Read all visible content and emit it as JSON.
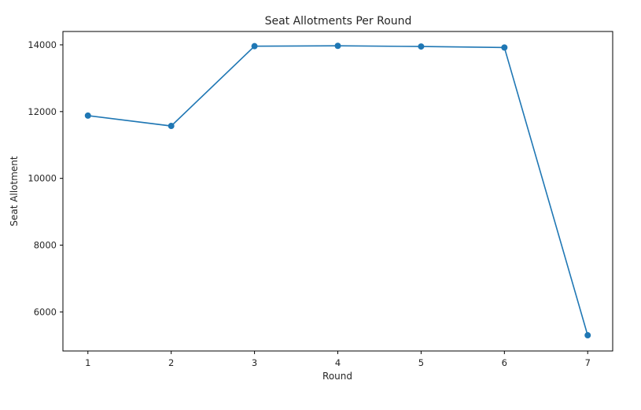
{
  "chart_data": {
    "type": "line",
    "title": "Seat Allotments Per Round",
    "xlabel": "Round",
    "ylabel": "Seat Allotment",
    "xlim": [
      0.7,
      7.3
    ],
    "ylim": [
      4830,
      14400
    ],
    "x_ticks": [
      1,
      2,
      3,
      4,
      5,
      6,
      7
    ],
    "y_ticks": [
      6000,
      8000,
      10000,
      12000,
      14000
    ],
    "grid": false,
    "series": [
      {
        "x": [
          1,
          2,
          3,
          4,
          5,
          6,
          7
        ],
        "values": [
          11880,
          11570,
          13960,
          13970,
          13950,
          13920,
          5300
        ],
        "color": "#1f77b4",
        "marker": "circle"
      }
    ]
  }
}
